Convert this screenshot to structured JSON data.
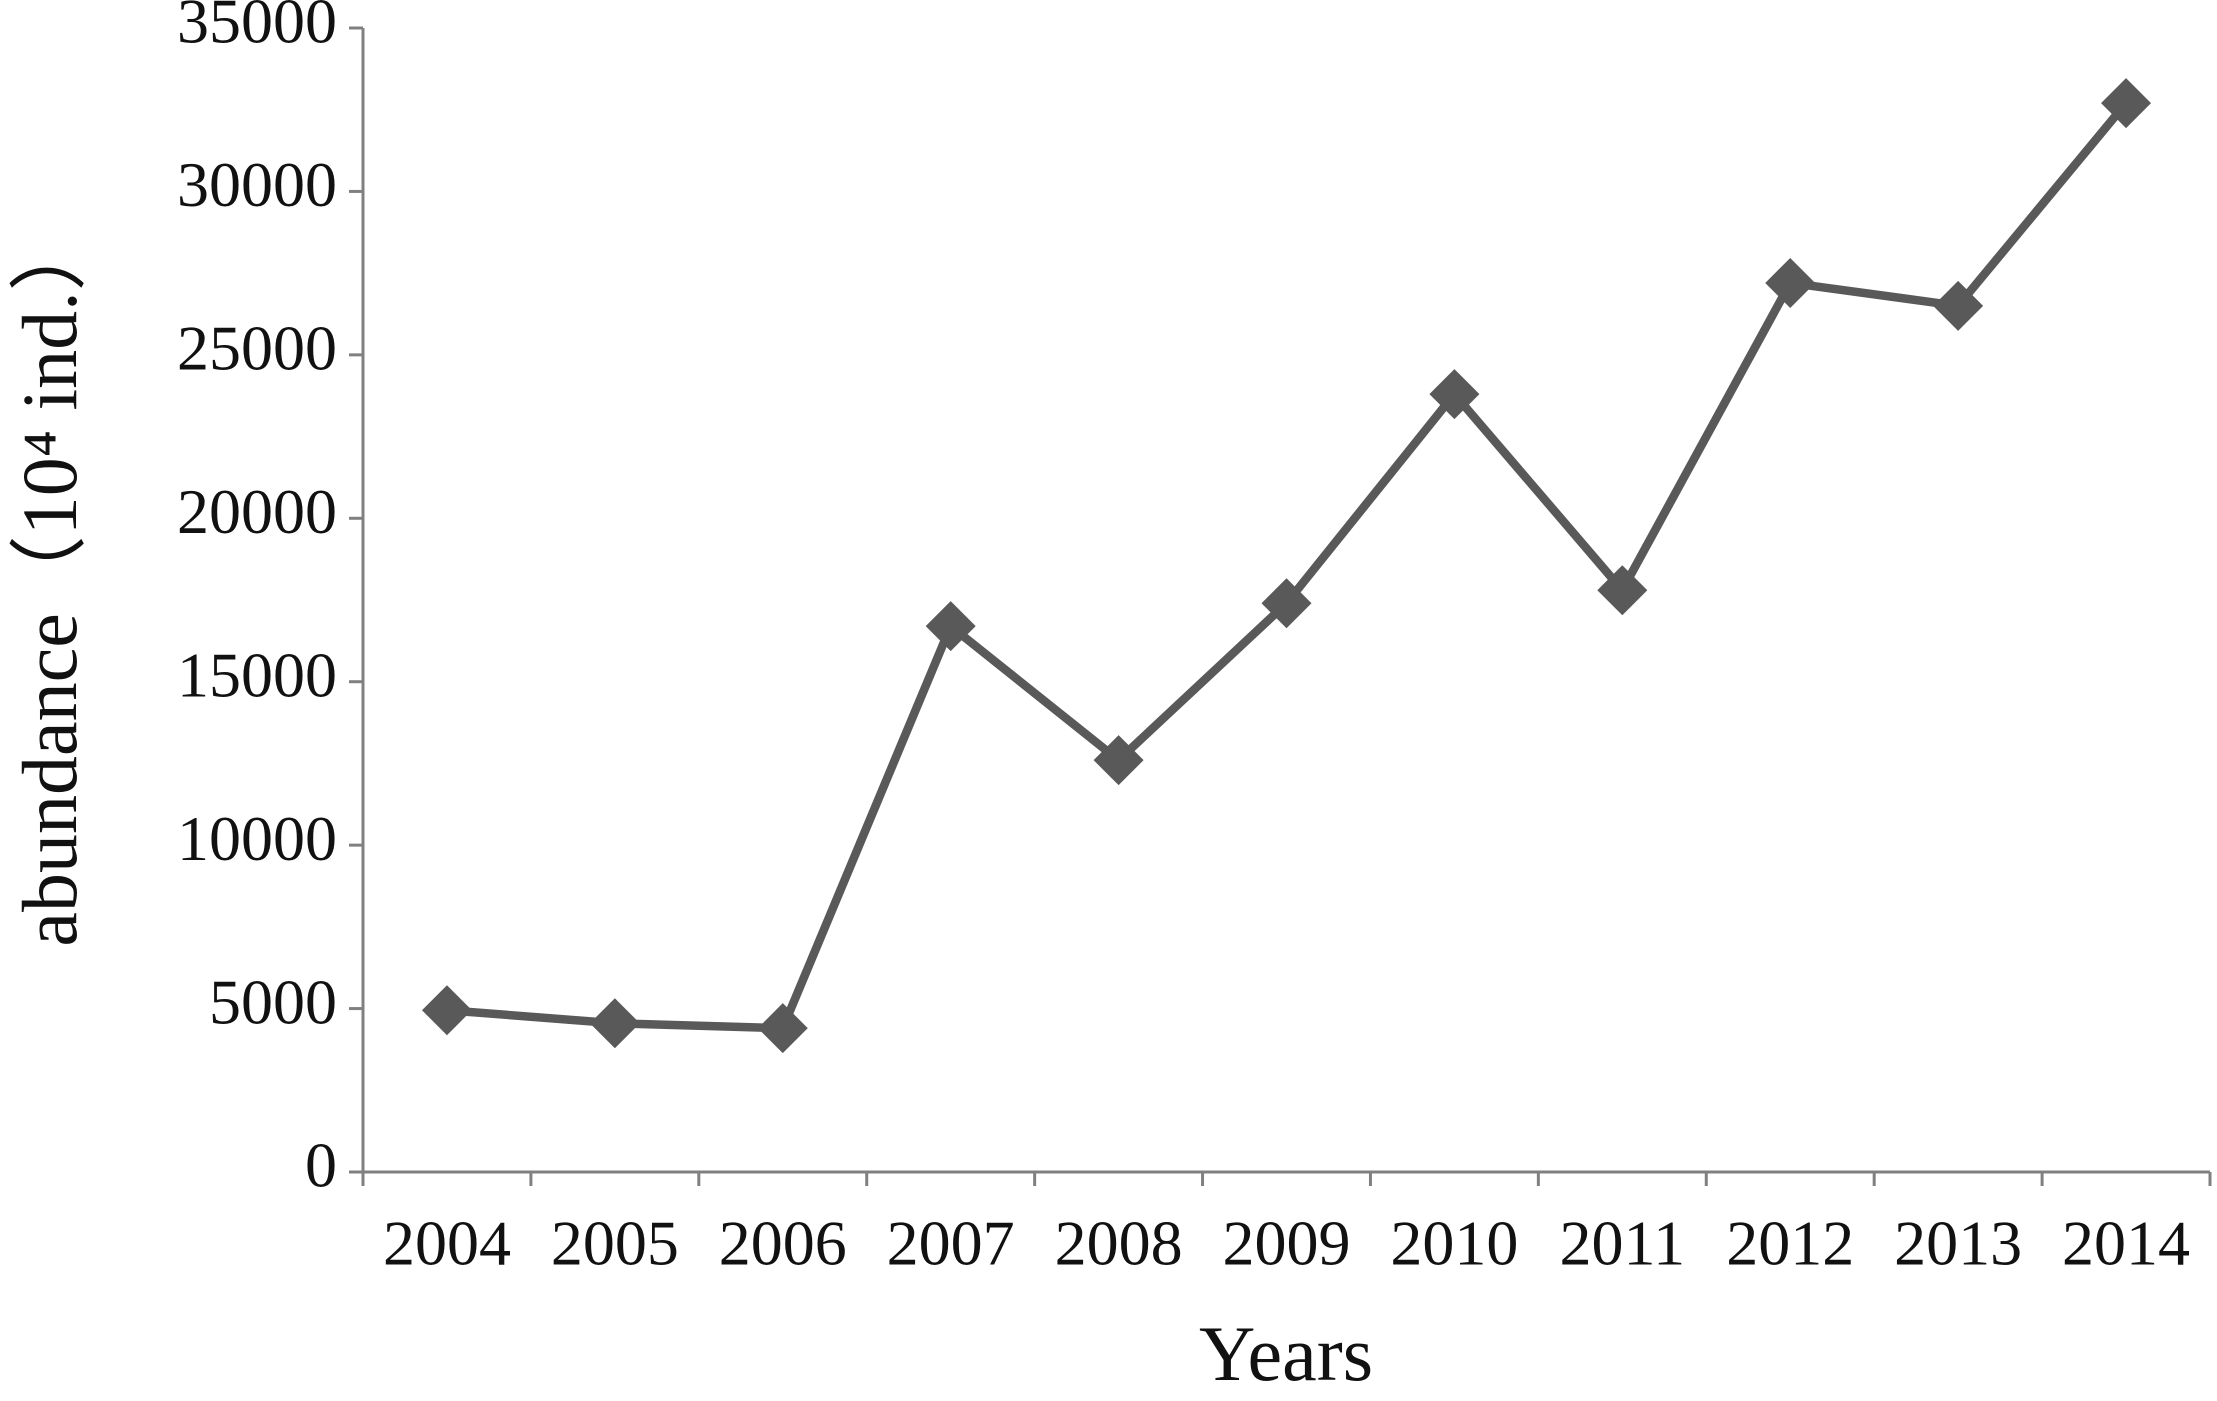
{
  "chart_data": {
    "type": "line",
    "x_label": "Years",
    "y_label": "abundance（10⁴ ind.）",
    "categories": [
      "2004",
      "2005",
      "2006",
      "2007",
      "2008",
      "2009",
      "2010",
      "2011",
      "2012",
      "2013",
      "2014"
    ],
    "series": [
      {
        "name": "abundance",
        "color": "#595959",
        "values": [
          4950,
          4550,
          4400,
          16700,
          12600,
          17400,
          23800,
          17800,
          27200,
          26500,
          32700
        ]
      }
    ],
    "ylim": [
      0,
      35000
    ],
    "yticks": [
      0,
      5000,
      10000,
      15000,
      20000,
      25000,
      30000,
      35000
    ],
    "grid": false,
    "legend": false
  }
}
